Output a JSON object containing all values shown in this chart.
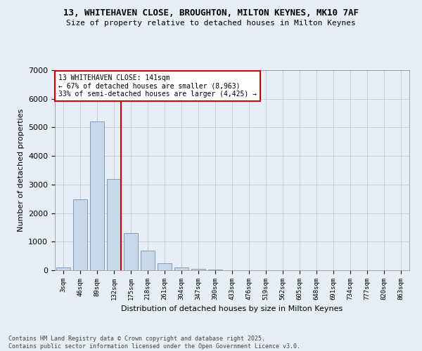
{
  "title1": "13, WHITEHAVEN CLOSE, BROUGHTON, MILTON KEYNES, MK10 7AF",
  "title2": "Size of property relative to detached houses in Milton Keynes",
  "xlabel": "Distribution of detached houses by size in Milton Keynes",
  "ylabel": "Number of detached properties",
  "categories": [
    "3sqm",
    "46sqm",
    "89sqm",
    "132sqm",
    "175sqm",
    "218sqm",
    "261sqm",
    "304sqm",
    "347sqm",
    "390sqm",
    "433sqm",
    "476sqm",
    "519sqm",
    "562sqm",
    "605sqm",
    "648sqm",
    "691sqm",
    "734sqm",
    "777sqm",
    "820sqm",
    "863sqm"
  ],
  "values": [
    105,
    2480,
    5200,
    3200,
    1300,
    700,
    250,
    105,
    50,
    20,
    8,
    4,
    2,
    1,
    1,
    0,
    0,
    0,
    0,
    0,
    0
  ],
  "bar_color": "#c9d9ea",
  "bar_edge_color": "#7090b5",
  "vline_x_pos": 3.42,
  "vline_color": "#cc0000",
  "ylim_max": 7000,
  "annotation_title": "13 WHITEHAVEN CLOSE: 141sqm",
  "annotation_line1": "← 67% of detached houses are smaller (8,963)",
  "annotation_line2": "33% of semi-detached houses are larger (4,425) →",
  "annotation_box_edge": "#cc0000",
  "footer1": "Contains HM Land Registry data © Crown copyright and database right 2025.",
  "footer2": "Contains public sector information licensed under the Open Government Licence v3.0.",
  "bg_color": "#e8eef5",
  "grid_color": "#c0c8d5"
}
